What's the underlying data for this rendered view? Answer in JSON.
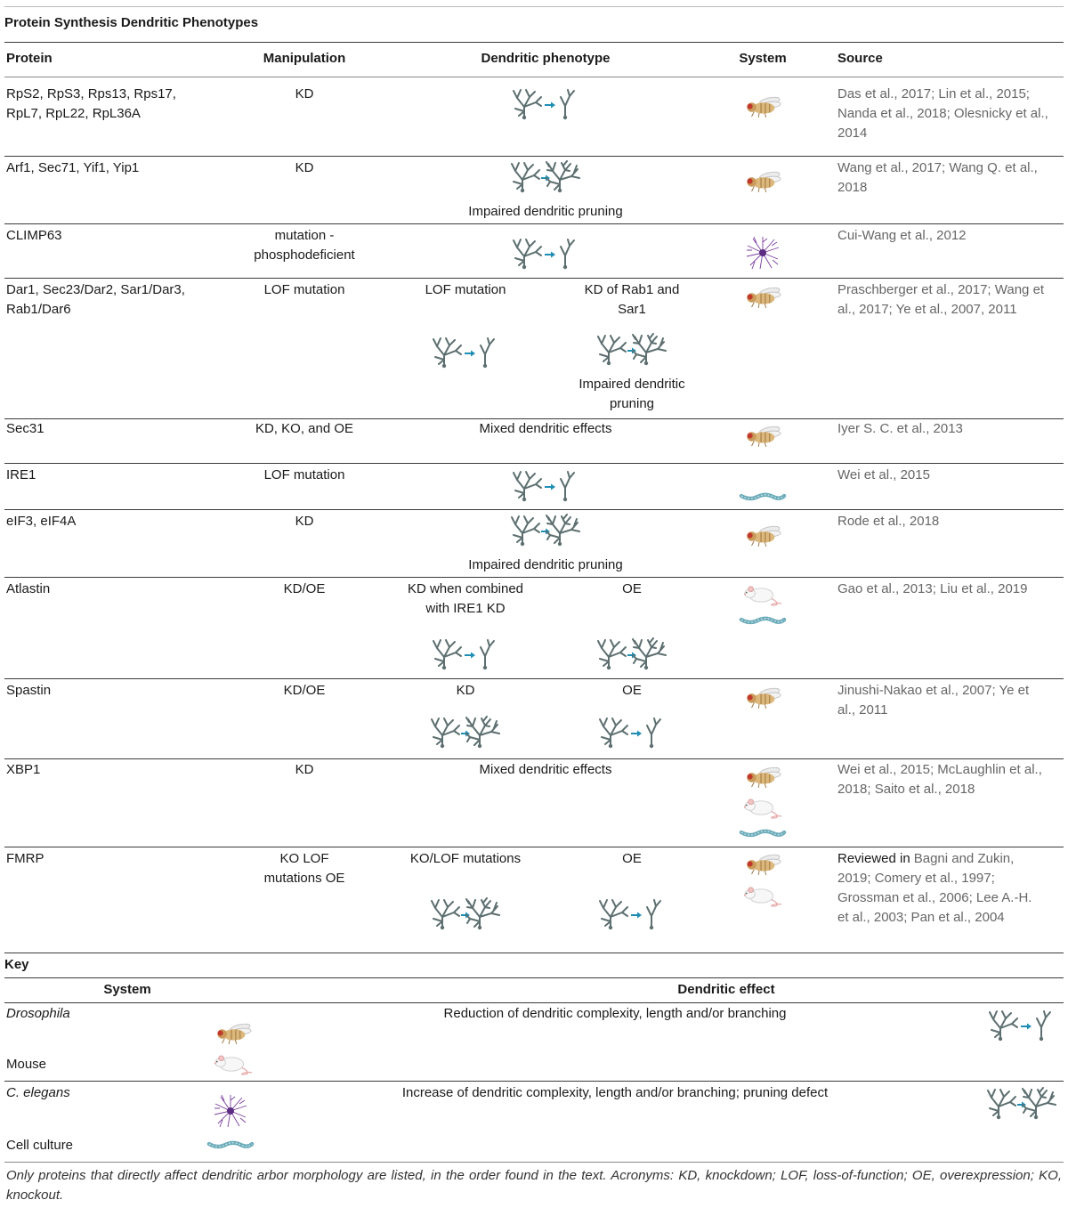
{
  "title": "Protein Synthesis Dendritic Phenotypes",
  "table": {
    "headers": [
      "Protein",
      "Manipulation",
      "Dendritic phenotype",
      "System",
      "Source"
    ],
    "rows": [
      {
        "protein": "RpS2, RpS3, Rps13, Rps17, RpL7, RpL22, RpL36A",
        "manipulation": "KD",
        "source": "Das et al., 2017; Lin et al., 2015; Nanda et al., 2018; Olesnicky et al., 2014"
      },
      {
        "protein": "Arf1, Sec71, Yif1, Yip1",
        "manipulation": "KD",
        "phenotype_note": "Impaired dendritic pruning",
        "source": "Wang et al., 2017; Wang Q. et al., 2018"
      },
      {
        "protein": "CLIMP63",
        "manipulation": "mutation - phosphodeficient",
        "source": "Cui-Wang et al., 2012"
      },
      {
        "protein": "Dar1, Sec23/Dar2, Sar1/Dar3, Rab1/Dar6",
        "manipulation": "LOF mutation",
        "phenotype_left": "LOF mutation",
        "phenotype_right": "KD of Rab1 and Sar1",
        "phenotype_right_note": "Impaired dendritic pruning",
        "source": "Praschberger et al., 2017; Wang et al., 2017; Ye et al., 2007, 2011"
      },
      {
        "protein": "Sec31",
        "manipulation": "KD, KO, and OE",
        "phenotype_note": "Mixed dendritic effects",
        "source": "Iyer S. C. et al., 2013"
      },
      {
        "protein": "IRE1",
        "manipulation": "LOF mutation",
        "source": "Wei et al., 2015"
      },
      {
        "protein": "eIF3, eIF4A",
        "manipulation": "KD",
        "phenotype_note": "Impaired dendritic pruning",
        "source": "Rode et al., 2018"
      },
      {
        "protein": "Atlastin",
        "manipulation": "KD/OE",
        "phenotype_left": "KD when combined with IRE1 KD",
        "phenotype_right": "OE",
        "source": "Gao et al., 2013; Liu et al., 2019"
      },
      {
        "protein": "Spastin",
        "manipulation": "KD/OE",
        "phenotype_left": "KD",
        "phenotype_right": "OE",
        "source": "Jinushi-Nakao et al., 2007; Ye et al., 2011"
      },
      {
        "protein": "XBP1",
        "manipulation": "KD",
        "phenotype_note": "Mixed dendritic effects",
        "source": "Wei et al., 2015; McLaughlin et al., 2018; Saito et al., 2018"
      },
      {
        "protein": "FMRP",
        "manipulation": "KO LOF mutations OE",
        "phenotype_left": "KO/LOF mutations",
        "phenotype_right": "OE",
        "source_prefix": "Reviewed in",
        "source": "Bagni and Zukin, 2019; Comery et al., 1997; Grossman et al., 2006; Lee A.-H. et al., 2003; Pan et al., 2004"
      }
    ]
  },
  "key": {
    "title": "Key",
    "headers": [
      "System",
      "Dendritic effect"
    ],
    "systems": [
      "Drosophila",
      "Mouse",
      "C. elegans",
      "Cell culture"
    ],
    "effects": [
      "Reduction of dendritic complexity, length and/or branching",
      "Increase of dendritic complexity, length and/or branching; pruning defect"
    ]
  },
  "footnote": "Only proteins that directly affect dendritic arbor morphology are listed, in the order found in the text. Acronyms: KD, knockdown; LOF, loss-of-function; OE, overexpression; KO, knockout."
}
